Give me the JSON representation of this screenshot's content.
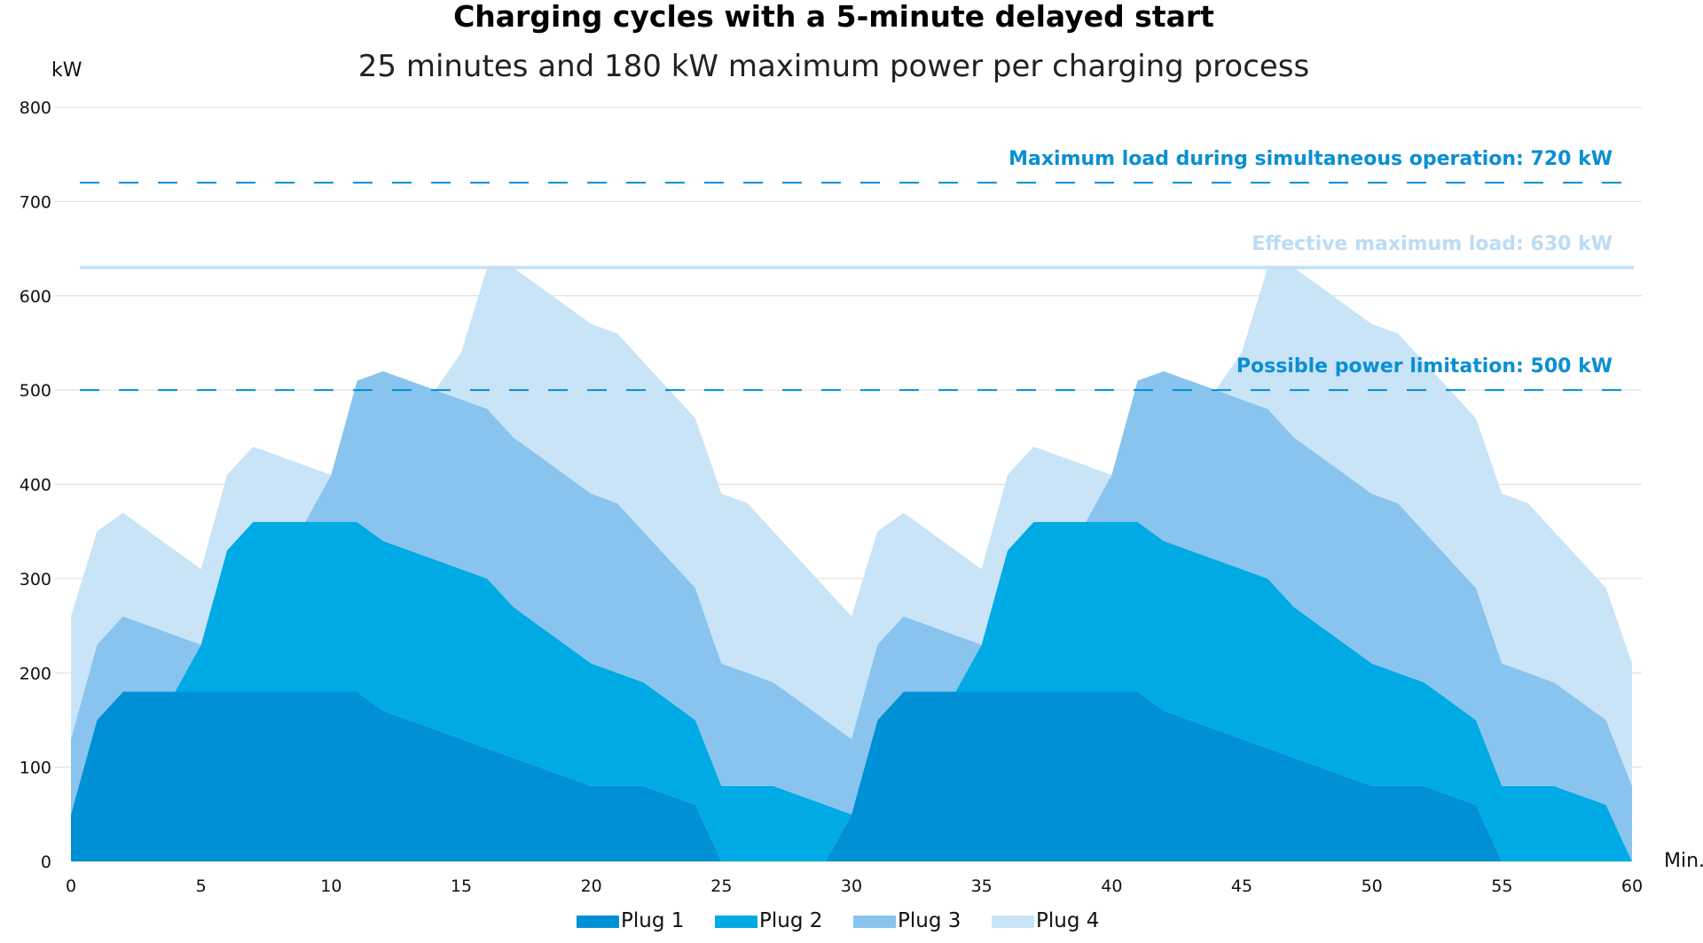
{
  "chart_data": {
    "type": "area",
    "stacked": true,
    "title": "Charging cycles with a 5-minute delayed start",
    "subtitle": "25 minutes and 180 kW maximum power per charging process",
    "ylabel": "kW",
    "xlabel": "Min.",
    "xlim": [
      0,
      60
    ],
    "ylim": [
      0,
      800
    ],
    "x_ticks": [
      0,
      5,
      10,
      15,
      20,
      25,
      30,
      35,
      40,
      45,
      50,
      55,
      60
    ],
    "y_ticks": [
      0,
      100,
      200,
      300,
      400,
      500,
      600,
      700,
      800
    ],
    "grid": true,
    "x": [
      0,
      1,
      2,
      3,
      4,
      5,
      6,
      7,
      8,
      9,
      10,
      11,
      12,
      13,
      14,
      15,
      16,
      17,
      18,
      19,
      20,
      21,
      22,
      23,
      24,
      25,
      26,
      27,
      28,
      29,
      30,
      31,
      32,
      33,
      34,
      35,
      36,
      37,
      38,
      39,
      40,
      41,
      42,
      43,
      44,
      45,
      46,
      47,
      48,
      49,
      50,
      51,
      52,
      53,
      54,
      55,
      56,
      57,
      58,
      59,
      60
    ],
    "series": [
      {
        "name": "Plug 1",
        "color": "#0090d6",
        "values": [
          50,
          150,
          180,
          180,
          180,
          180,
          180,
          180,
          180,
          180,
          180,
          180,
          160,
          150,
          140,
          130,
          120,
          110,
          100,
          90,
          80,
          80,
          80,
          70,
          60,
          0,
          0,
          0,
          0,
          0,
          50,
          150,
          180,
          180,
          180,
          180,
          180,
          180,
          180,
          180,
          180,
          180,
          160,
          150,
          140,
          130,
          120,
          110,
          100,
          90,
          80,
          80,
          80,
          70,
          60,
          0,
          0,
          0,
          0,
          0,
          0
        ]
      },
      {
        "name": "Plug 2",
        "color": "#00aae4",
        "values": [
          0,
          0,
          0,
          0,
          0,
          50,
          150,
          180,
          180,
          180,
          180,
          180,
          180,
          180,
          180,
          180,
          180,
          160,
          150,
          140,
          130,
          120,
          110,
          100,
          90,
          80,
          80,
          80,
          70,
          60,
          0,
          0,
          0,
          0,
          0,
          50,
          150,
          180,
          180,
          180,
          180,
          180,
          180,
          180,
          180,
          180,
          180,
          160,
          150,
          140,
          130,
          120,
          110,
          100,
          90,
          80,
          80,
          80,
          70,
          60,
          0
        ]
      },
      {
        "name": "Plug 3",
        "color": "#89c4ee",
        "values": [
          80,
          80,
          80,
          70,
          60,
          0,
          0,
          0,
          0,
          0,
          50,
          150,
          180,
          180,
          180,
          180,
          180,
          180,
          180,
          180,
          180,
          180,
          160,
          150,
          140,
          130,
          120,
          110,
          100,
          90,
          80,
          80,
          80,
          70,
          60,
          0,
          0,
          0,
          0,
          0,
          50,
          150,
          180,
          180,
          180,
          180,
          180,
          180,
          180,
          180,
          180,
          180,
          160,
          150,
          140,
          130,
          120,
          110,
          100,
          90,
          80
        ]
      },
      {
        "name": "Plug 4",
        "color": "#c9e3f7",
        "values": [
          130,
          120,
          110,
          100,
          90,
          80,
          80,
          80,
          70,
          60,
          0,
          0,
          0,
          0,
          0,
          50,
          150,
          180,
          180,
          180,
          180,
          180,
          180,
          180,
          180,
          180,
          180,
          160,
          150,
          140,
          130,
          120,
          110,
          100,
          90,
          80,
          80,
          80,
          70,
          60,
          0,
          0,
          0,
          0,
          0,
          50,
          150,
          180,
          180,
          180,
          180,
          180,
          180,
          180,
          180,
          180,
          180,
          160,
          150,
          140,
          130
        ]
      }
    ],
    "reference_lines": [
      {
        "label": "Maximum load during simultaneous operation: 720 kW",
        "value": 720,
        "style": "dashed",
        "color": "#0090d6",
        "label_color": "#0a8fd3"
      },
      {
        "label": "Effective maximum load: 630 kW",
        "value": 630,
        "style": "solid",
        "color": "#c6e2f7",
        "label_color": "#bcdcf3"
      },
      {
        "label": "Possible power limitation: 500 kW",
        "value": 500,
        "style": "dashed",
        "color": "#0090d6",
        "label_color": "#0a8fd3"
      }
    ],
    "legend": {
      "position": "bottom-center",
      "entries": [
        "Plug 1",
        "Plug 2",
        "Plug 3",
        "Plug 4"
      ]
    }
  }
}
